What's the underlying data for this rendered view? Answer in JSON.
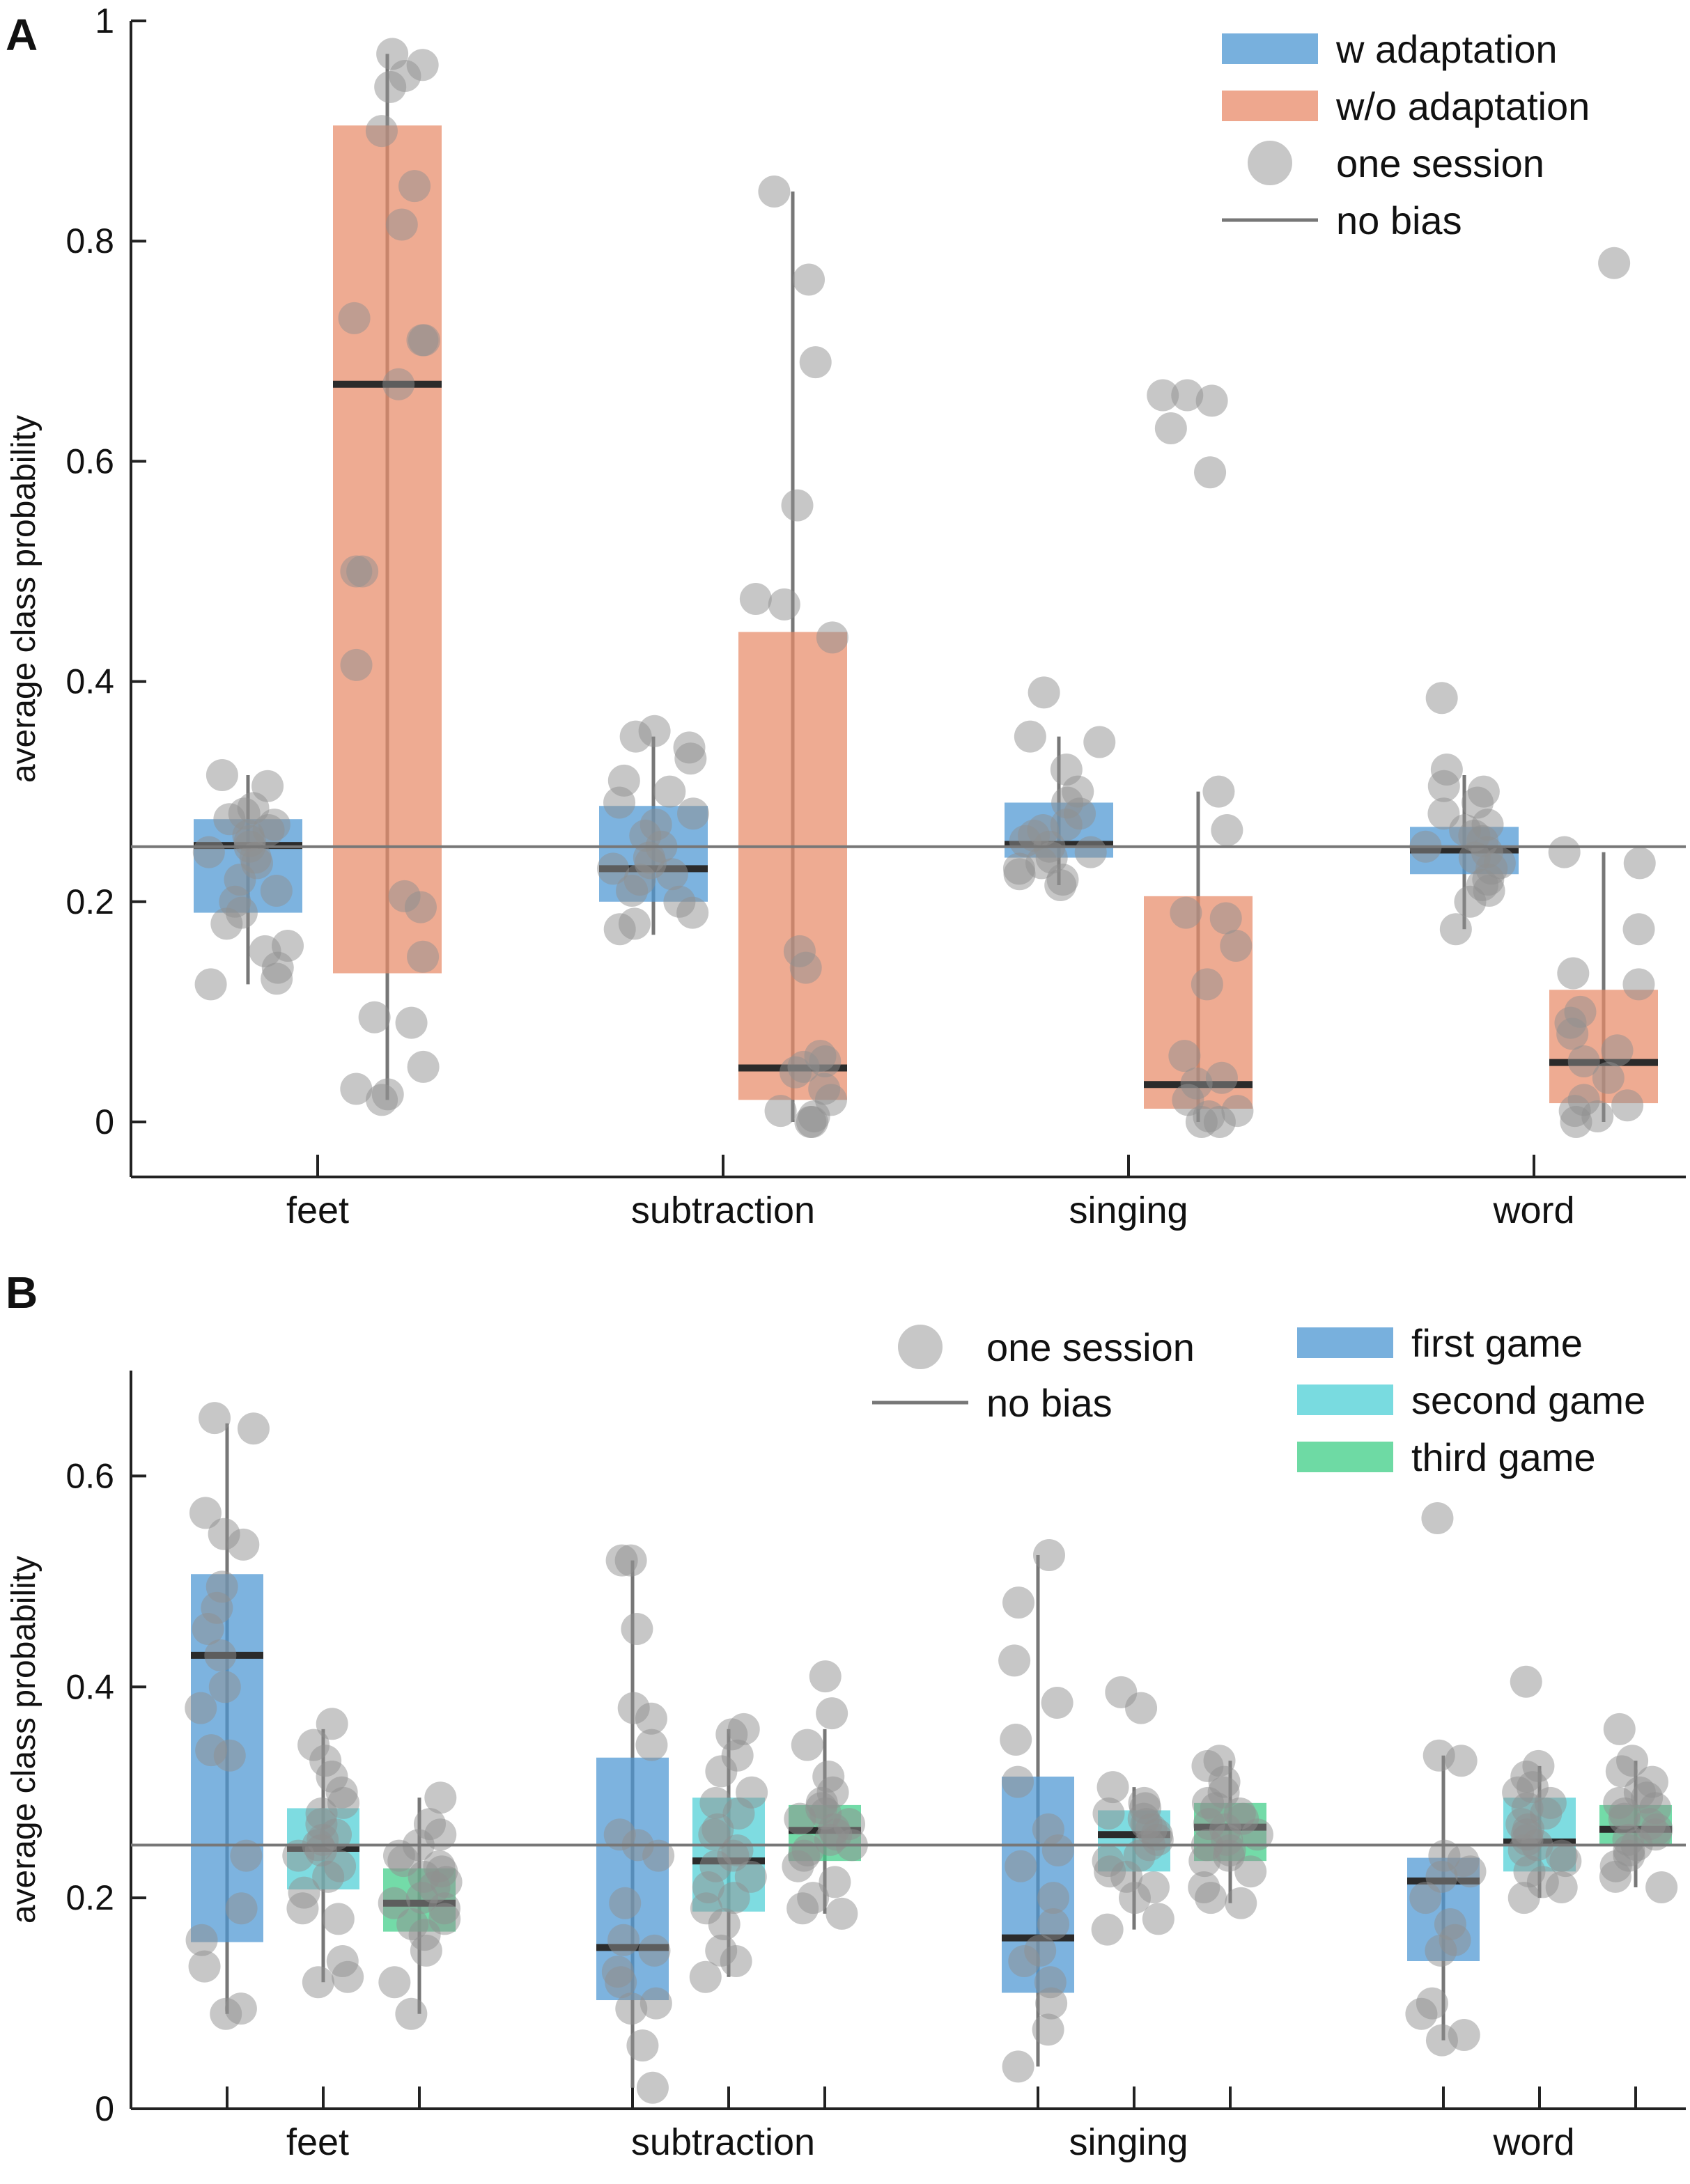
{
  "colors": {
    "w_adaptation": "#4b96d2",
    "wo_adaptation": "#e88a68",
    "first_game": "#4b96d2",
    "second_game": "#4ccfd6",
    "third_game": "#3dcd86",
    "session_dot": "#909090",
    "no_bias_line": "#777777",
    "median": "#2b2b2b",
    "whisker": "#777777"
  },
  "chart_data": [
    {
      "panel": "A",
      "type": "box",
      "ylabel": "average class probability",
      "ylim": [
        -0.05,
        1.0
      ],
      "yticks": [
        0,
        0.2,
        0.4,
        0.6,
        0.8,
        1
      ],
      "ytick_labels": [
        "0",
        "0.2",
        "0.4",
        "0.6",
        "0.8",
        "1"
      ],
      "categories": [
        "feet",
        "subtraction",
        "singing",
        "word"
      ],
      "no_bias": 0.25,
      "legend": {
        "position": "top-right",
        "entries": [
          {
            "label": "w adaptation",
            "kind": "patch",
            "color_key": "w_adaptation"
          },
          {
            "label": "w/o adaptation",
            "kind": "patch",
            "color_key": "wo_adaptation"
          },
          {
            "label": "one session",
            "kind": "dot",
            "color_key": "session_dot"
          },
          {
            "label": "no bias",
            "kind": "line",
            "color_key": "no_bias_line"
          }
        ]
      },
      "series": [
        {
          "name": "w adaptation",
          "color_key": "w_adaptation",
          "boxes": [
            {
              "q1": 0.19,
              "median": 0.251,
              "q3": 0.275,
              "whisker_low": 0.125,
              "whisker_high": 0.315,
              "points": [
                0.315,
                0.305,
                0.285,
                0.28,
                0.275,
                0.27,
                0.265,
                0.26,
                0.255,
                0.25,
                0.245,
                0.24,
                0.235,
                0.22,
                0.21,
                0.2,
                0.19,
                0.18,
                0.16,
                0.155,
                0.14,
                0.13,
                0.125
              ]
            },
            {
              "q1": 0.2,
              "median": 0.23,
              "q3": 0.287,
              "whisker_low": 0.17,
              "whisker_high": 0.35,
              "points": [
                0.355,
                0.35,
                0.34,
                0.33,
                0.31,
                0.3,
                0.29,
                0.28,
                0.27,
                0.26,
                0.25,
                0.24,
                0.235,
                0.23,
                0.225,
                0.22,
                0.21,
                0.2,
                0.19,
                0.18,
                0.175
              ]
            },
            {
              "q1": 0.24,
              "median": 0.252,
              "q3": 0.29,
              "whisker_low": 0.215,
              "whisker_high": 0.35,
              "points": [
                0.39,
                0.35,
                0.345,
                0.32,
                0.3,
                0.29,
                0.28,
                0.27,
                0.265,
                0.26,
                0.255,
                0.25,
                0.245,
                0.24,
                0.235,
                0.23,
                0.225,
                0.22,
                0.215
              ]
            },
            {
              "q1": 0.225,
              "median": 0.247,
              "q3": 0.268,
              "whisker_low": 0.175,
              "whisker_high": 0.315,
              "points": [
                0.385,
                0.32,
                0.305,
                0.3,
                0.29,
                0.28,
                0.27,
                0.265,
                0.26,
                0.255,
                0.25,
                0.245,
                0.24,
                0.235,
                0.23,
                0.22,
                0.215,
                0.21,
                0.2,
                0.175
              ]
            }
          ]
        },
        {
          "name": "w/o adaptation",
          "color_key": "wo_adaptation",
          "boxes": [
            {
              "q1": 0.135,
              "median": 0.67,
              "q3": 0.905,
              "whisker_low": 0.02,
              "whisker_high": 0.97,
              "points": [
                0.97,
                0.96,
                0.95,
                0.94,
                0.9,
                0.85,
                0.815,
                0.73,
                0.71,
                0.71,
                0.67,
                0.5,
                0.5,
                0.415,
                0.205,
                0.195,
                0.15,
                0.095,
                0.09,
                0.05,
                0.03,
                0.025,
                0.02
              ]
            },
            {
              "q1": 0.02,
              "median": 0.049,
              "q3": 0.445,
              "whisker_low": 0.0,
              "whisker_high": 0.845,
              "points": [
                0.845,
                0.765,
                0.69,
                0.56,
                0.475,
                0.47,
                0.44,
                0.155,
                0.14,
                0.06,
                0.055,
                0.05,
                0.045,
                0.03,
                0.02,
                0.01,
                0.005,
                0.0,
                0.0
              ]
            },
            {
              "q1": 0.012,
              "median": 0.034,
              "q3": 0.205,
              "whisker_low": 0.0,
              "whisker_high": 0.3,
              "points": [
                0.66,
                0.66,
                0.655,
                0.63,
                0.59,
                0.3,
                0.265,
                0.19,
                0.185,
                0.16,
                0.125,
                0.06,
                0.04,
                0.035,
                0.02,
                0.01,
                0.005,
                0.0,
                0.0
              ]
            },
            {
              "q1": 0.017,
              "median": 0.054,
              "q3": 0.12,
              "whisker_low": 0.0,
              "whisker_high": 0.245,
              "points": [
                0.78,
                0.245,
                0.235,
                0.175,
                0.135,
                0.125,
                0.1,
                0.09,
                0.08,
                0.065,
                0.055,
                0.04,
                0.02,
                0.015,
                0.01,
                0.005,
                0.0
              ]
            }
          ]
        }
      ]
    },
    {
      "panel": "B",
      "type": "box",
      "ylabel": "average class probability",
      "ylim": [
        0,
        0.7
      ],
      "yticks": [
        0,
        0.2,
        0.4,
        0.6
      ],
      "ytick_labels": [
        "0",
        "0.2",
        "0.4",
        "0.6"
      ],
      "categories": [
        "feet",
        "subtraction",
        "singing",
        "word"
      ],
      "no_bias": 0.25,
      "legend": {
        "position": "top-right",
        "entries": [
          {
            "label": "one session",
            "kind": "dot",
            "color_key": "session_dot"
          },
          {
            "label": "no bias",
            "kind": "line",
            "color_key": "no_bias_line"
          },
          {
            "label": "first game",
            "kind": "patch",
            "color_key": "first_game"
          },
          {
            "label": "second game",
            "kind": "patch",
            "color_key": "second_game"
          },
          {
            "label": "third game",
            "kind": "patch",
            "color_key": "third_game"
          }
        ]
      },
      "series": [
        {
          "name": "first game",
          "color_key": "first_game",
          "boxes": [
            {
              "q1": 0.158,
              "median": 0.43,
              "q3": 0.507,
              "whisker_low": 0.09,
              "whisker_high": 0.65,
              "points": [
                0.655,
                0.645,
                0.565,
                0.545,
                0.535,
                0.495,
                0.475,
                0.455,
                0.43,
                0.4,
                0.38,
                0.34,
                0.335,
                0.24,
                0.19,
                0.16,
                0.135,
                0.095,
                0.09
              ]
            },
            {
              "q1": 0.103,
              "median": 0.153,
              "q3": 0.333,
              "whisker_low": 0.02,
              "whisker_high": 0.52,
              "points": [
                0.52,
                0.52,
                0.455,
                0.38,
                0.37,
                0.345,
                0.26,
                0.25,
                0.24,
                0.195,
                0.16,
                0.15,
                0.13,
                0.12,
                0.1,
                0.095,
                0.06,
                0.02
              ]
            },
            {
              "q1": 0.11,
              "median": 0.162,
              "q3": 0.315,
              "whisker_low": 0.04,
              "whisker_high": 0.525,
              "points": [
                0.525,
                0.48,
                0.425,
                0.385,
                0.35,
                0.31,
                0.265,
                0.245,
                0.23,
                0.2,
                0.175,
                0.15,
                0.14,
                0.12,
                0.1,
                0.075,
                0.04
              ]
            },
            {
              "q1": 0.14,
              "median": 0.216,
              "q3": 0.238,
              "whisker_low": 0.065,
              "whisker_high": 0.335,
              "points": [
                0.56,
                0.335,
                0.33,
                0.24,
                0.235,
                0.225,
                0.22,
                0.2,
                0.175,
                0.16,
                0.15,
                0.1,
                0.09,
                0.07,
                0.065
              ]
            }
          ]
        },
        {
          "name": "second game",
          "color_key": "second_game",
          "boxes": [
            {
              "q1": 0.208,
              "median": 0.247,
              "q3": 0.285,
              "whisker_low": 0.12,
              "whisker_high": 0.36,
              "points": [
                0.365,
                0.345,
                0.33,
                0.315,
                0.3,
                0.29,
                0.28,
                0.27,
                0.26,
                0.255,
                0.25,
                0.245,
                0.24,
                0.23,
                0.22,
                0.205,
                0.19,
                0.18,
                0.14,
                0.125,
                0.12
              ]
            },
            {
              "q1": 0.187,
              "median": 0.235,
              "q3": 0.295,
              "whisker_low": 0.125,
              "whisker_high": 0.36,
              "points": [
                0.36,
                0.355,
                0.335,
                0.32,
                0.3,
                0.29,
                0.28,
                0.265,
                0.26,
                0.245,
                0.24,
                0.23,
                0.22,
                0.21,
                0.2,
                0.19,
                0.175,
                0.15,
                0.14,
                0.125
              ]
            },
            {
              "q1": 0.225,
              "median": 0.26,
              "q3": 0.283,
              "whisker_low": 0.17,
              "whisker_high": 0.305,
              "points": [
                0.395,
                0.38,
                0.305,
                0.29,
                0.285,
                0.28,
                0.275,
                0.27,
                0.265,
                0.26,
                0.255,
                0.25,
                0.24,
                0.235,
                0.225,
                0.22,
                0.21,
                0.2,
                0.18,
                0.17
              ]
            },
            {
              "q1": 0.225,
              "median": 0.253,
              "q3": 0.295,
              "whisker_low": 0.2,
              "whisker_high": 0.325,
              "points": [
                0.405,
                0.325,
                0.315,
                0.305,
                0.3,
                0.29,
                0.285,
                0.28,
                0.27,
                0.265,
                0.26,
                0.255,
                0.25,
                0.245,
                0.24,
                0.235,
                0.225,
                0.215,
                0.21,
                0.2
              ]
            }
          ]
        },
        {
          "name": "third game",
          "color_key": "third_game",
          "boxes": [
            {
              "q1": 0.168,
              "median": 0.195,
              "q3": 0.228,
              "whisker_low": 0.09,
              "whisker_high": 0.295,
              "points": [
                0.295,
                0.27,
                0.26,
                0.25,
                0.24,
                0.235,
                0.23,
                0.225,
                0.22,
                0.215,
                0.21,
                0.2,
                0.195,
                0.19,
                0.18,
                0.175,
                0.165,
                0.15,
                0.12,
                0.09
              ]
            },
            {
              "q1": 0.235,
              "median": 0.264,
              "q3": 0.288,
              "whisker_low": 0.185,
              "whisker_high": 0.36,
              "points": [
                0.41,
                0.375,
                0.345,
                0.315,
                0.3,
                0.29,
                0.285,
                0.28,
                0.275,
                0.27,
                0.265,
                0.26,
                0.255,
                0.25,
                0.245,
                0.24,
                0.23,
                0.215,
                0.2,
                0.19,
                0.185
              ]
            },
            {
              "q1": 0.235,
              "median": 0.267,
              "q3": 0.29,
              "whisker_low": 0.195,
              "whisker_high": 0.33,
              "points": [
                0.33,
                0.325,
                0.31,
                0.3,
                0.29,
                0.285,
                0.28,
                0.275,
                0.27,
                0.265,
                0.26,
                0.255,
                0.25,
                0.245,
                0.24,
                0.235,
                0.225,
                0.21,
                0.2,
                0.195
              ]
            },
            {
              "q1": 0.25,
              "median": 0.265,
              "q3": 0.288,
              "whisker_low": 0.21,
              "whisker_high": 0.33,
              "points": [
                0.36,
                0.33,
                0.32,
                0.31,
                0.3,
                0.295,
                0.29,
                0.285,
                0.28,
                0.275,
                0.27,
                0.265,
                0.26,
                0.255,
                0.25,
                0.245,
                0.24,
                0.23,
                0.22,
                0.21
              ]
            }
          ]
        }
      ]
    }
  ]
}
